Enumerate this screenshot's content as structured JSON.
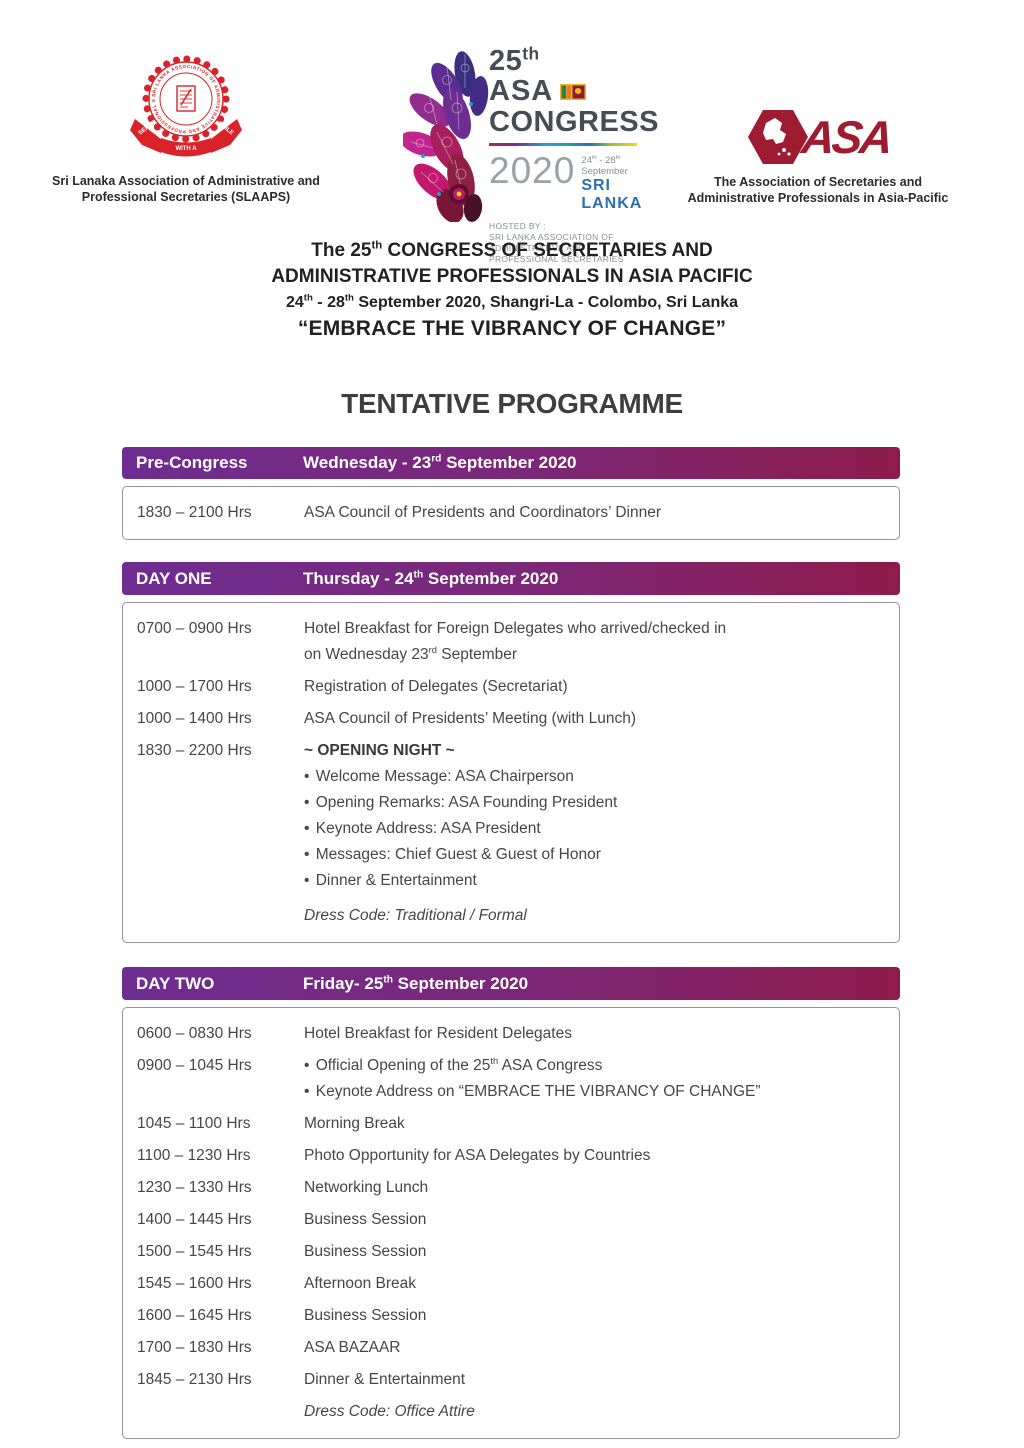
{
  "colors": {
    "purple": "#6e2d91",
    "maroon": "#8e1b4b",
    "slaaps_red": "#d8232a",
    "asa_red": "#9e1c32",
    "flag_blue": "#2e6fb0"
  },
  "logos": {
    "slaaps": {
      "ring_text": "SRI LANKA ASSOCIATION OF ADMINISTRATIVE AND PROFESSIONAL SECRETARIES",
      "ribbon_left": "SERVE",
      "ribbon_center": "WITH A",
      "ribbon_right": "SMILE",
      "caption_line1": "Sri Lanaka Association of Administrative and",
      "caption_line2": "Professional Secretaries (SLAAPS)"
    },
    "congress": {
      "number": "25",
      "number_sup": "th",
      "org": "ASA",
      "word": "CONGRESS",
      "year": "2020",
      "dates": [
        {
          "t": "24"
        },
        {
          "t": "th",
          "sup": true
        },
        {
          "t": " - 28"
        },
        {
          "t": "th",
          "sup": true
        },
        {
          "t": " September"
        }
      ],
      "country": "SRI LANKA",
      "hosted_by": "HOSTED BY :",
      "host_line1": "SRI LANKA ASSOCIATION OF",
      "host_line2": "ADMINISTRATIVE AND",
      "host_line3": "PROFESSIONAL SECRETARIES"
    },
    "asa": {
      "letters": "ASA",
      "caption_line1": "The Association of Secretaries and",
      "caption_line2": "Administrative Professionals in Asia-Pacific"
    }
  },
  "header": {
    "line1": [
      {
        "t": "The 25"
      },
      {
        "t": "th",
        "sup": true
      },
      {
        "t": " CONGRESS OF SECRETARIES AND"
      }
    ],
    "line2": "ADMINISTRATIVE PROFESSIONALS IN ASIA PACIFIC",
    "line3": [
      {
        "t": "24"
      },
      {
        "t": "th",
        "sup": true
      },
      {
        "t": " - 28"
      },
      {
        "t": "th",
        "sup": true
      },
      {
        "t": " September 2020, Shangri-La - Colombo, Sri Lanka"
      }
    ],
    "line4": "“EMBRACE THE VIBRANCY OF CHANGE”"
  },
  "programme_title": "TENTATIVE PROGRAMME",
  "sections": [
    {
      "label": "Pre-Congress",
      "date": [
        {
          "t": "Wednesday - 23"
        },
        {
          "t": "rd",
          "sup": true
        },
        {
          "t": " September 2020"
        }
      ],
      "rows": [
        {
          "time": "1830 – 2100 Hrs",
          "lines": [
            {
              "style": "normal",
              "segments": [
                {
                  "t": "ASA Council of Presidents and Coordinators’ Dinner"
                }
              ]
            }
          ]
        }
      ]
    },
    {
      "label": "DAY ONE",
      "date": [
        {
          "t": "Thursday - 24"
        },
        {
          "t": "th",
          "sup": true
        },
        {
          "t": " September 2020"
        }
      ],
      "rows": [
        {
          "time": "0700 – 0900 Hrs",
          "lines": [
            {
              "style": "normal",
              "segments": [
                {
                  "t": "Hotel Breakfast for Foreign Delegates who arrived/checked in"
                }
              ]
            },
            {
              "style": "normal",
              "segments": [
                {
                  "t": "on Wednesday 23"
                },
                {
                  "t": "rd",
                  "sup": true
                },
                {
                  "t": " September"
                }
              ]
            }
          ]
        },
        {
          "time": "1000 – 1700 Hrs",
          "lines": [
            {
              "style": "normal",
              "segments": [
                {
                  "t": "Registration of Delegates (Secretariat)"
                }
              ]
            }
          ]
        },
        {
          "time": "1000 – 1400 Hrs",
          "lines": [
            {
              "style": "normal",
              "segments": [
                {
                  "t": "ASA Council of Presidents’ Meeting (with Lunch)"
                }
              ]
            }
          ]
        },
        {
          "time": "1830 – 2200 Hrs",
          "lines": [
            {
              "style": "bold",
              "segments": [
                {
                  "t": "~ OPENING NIGHT ~"
                }
              ]
            },
            {
              "style": "bullet",
              "segments": [
                {
                  "t": "Welcome Message: ASA Chairperson"
                }
              ]
            },
            {
              "style": "bullet",
              "segments": [
                {
                  "t": "Opening Remarks: ASA Founding President"
                }
              ]
            },
            {
              "style": "bullet",
              "segments": [
                {
                  "t": "Keynote Address:  ASA President"
                }
              ]
            },
            {
              "style": "bullet",
              "segments": [
                {
                  "t": "Messages: Chief Guest & Guest of Honor"
                }
              ]
            },
            {
              "style": "bullet",
              "segments": [
                {
                  "t": "Dinner & Entertainment"
                }
              ]
            },
            {
              "style": "italic-gap",
              "segments": [
                {
                  "t": "Dress Code: Traditional / Formal"
                }
              ]
            }
          ]
        }
      ]
    },
    {
      "label": "DAY TWO",
      "date": [
        {
          "t": "Friday- 25"
        },
        {
          "t": "th",
          "sup": true
        },
        {
          "t": " September 2020"
        }
      ],
      "rows": [
        {
          "time": "0600 – 0830 Hrs",
          "lines": [
            {
              "style": "normal",
              "segments": [
                {
                  "t": "Hotel Breakfast for Resident Delegates"
                }
              ]
            }
          ]
        },
        {
          "time": "0900 – 1045 Hrs",
          "lines": [
            {
              "style": "bullet",
              "segments": [
                {
                  "t": "Official Opening of the 25"
                },
                {
                  "t": "th",
                  "sup": true
                },
                {
                  "t": " ASA Congress"
                }
              ]
            },
            {
              "style": "bullet",
              "segments": [
                {
                  "t": "Keynote Address on “EMBRACE THE VIBRANCY OF CHANGE”"
                }
              ]
            }
          ]
        },
        {
          "time": "1045 – 1100 Hrs",
          "lines": [
            {
              "style": "normal",
              "segments": [
                {
                  "t": "Morning Break"
                }
              ]
            }
          ]
        },
        {
          "time": "1100 – 1230 Hrs",
          "lines": [
            {
              "style": "normal",
              "segments": [
                {
                  "t": "Photo Opportunity for ASA Delegates by Countries"
                }
              ]
            }
          ]
        },
        {
          "time": "1230 – 1330 Hrs",
          "lines": [
            {
              "style": "normal",
              "segments": [
                {
                  "t": "Networking Lunch"
                }
              ]
            }
          ]
        },
        {
          "time": "1400 – 1445 Hrs",
          "lines": [
            {
              "style": "normal",
              "segments": [
                {
                  "t": "Business Session"
                }
              ]
            }
          ]
        },
        {
          "time": "1500 – 1545 Hrs",
          "lines": [
            {
              "style": "normal",
              "segments": [
                {
                  "t": "Business Session"
                }
              ]
            }
          ]
        },
        {
          "time": "1545 – 1600 Hrs",
          "lines": [
            {
              "style": "normal",
              "segments": [
                {
                  "t": "Afternoon Break"
                }
              ]
            }
          ]
        },
        {
          "time": "1600 – 1645 Hrs",
          "lines": [
            {
              "style": "normal",
              "segments": [
                {
                  "t": "Business Session"
                }
              ]
            }
          ]
        },
        {
          "time": "1700 – 1830 Hrs",
          "lines": [
            {
              "style": "normal",
              "segments": [
                {
                  "t": "ASA BAZAAR"
                }
              ]
            }
          ]
        },
        {
          "time": "1845 – 2130 Hrs",
          "lines": [
            {
              "style": "normal",
              "segments": [
                {
                  "t": "Dinner & Entertainment"
                }
              ]
            }
          ]
        },
        {
          "time": "",
          "lines": [
            {
              "style": "italic",
              "segments": [
                {
                  "t": "Dress Code: Office Attire"
                }
              ]
            }
          ]
        }
      ]
    }
  ]
}
